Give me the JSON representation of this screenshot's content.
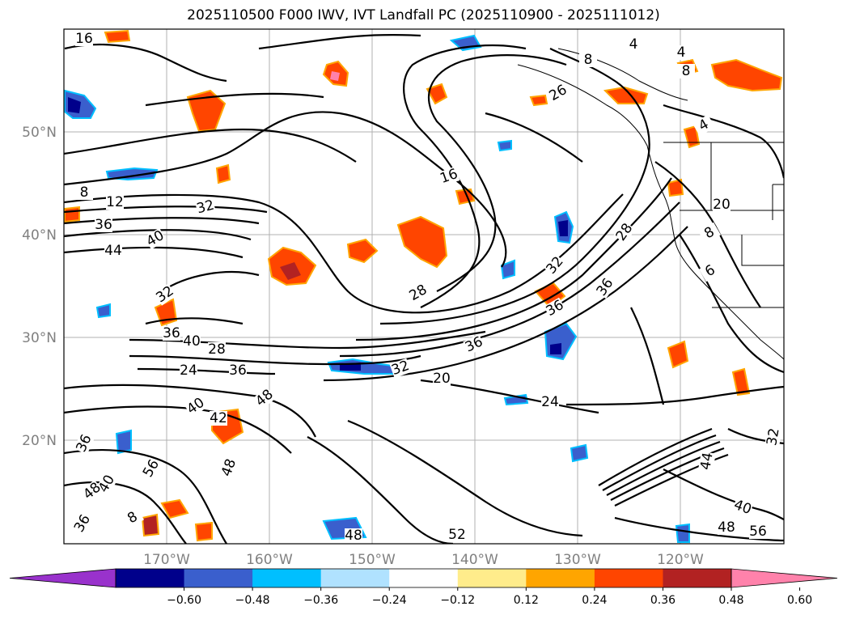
{
  "title": "2025110500 F000 IWV, IVT Landfall PC (2025110900 - 2025111012)",
  "lat_labels": [
    "50°N",
    "40°N",
    "30°N",
    "20°N"
  ],
  "lon_labels": [
    "170°W",
    "160°W",
    "150°W",
    "140°W",
    "130°W",
    "120°W"
  ],
  "colorbar": {
    "ticks": [
      "−0.60",
      "−0.48",
      "−0.36",
      "−0.24",
      "−0.12",
      "0.12",
      "0.24",
      "0.36",
      "0.48",
      "0.60"
    ],
    "colors": [
      "#9932cc",
      "#00008b",
      "#3a5fcd",
      "#00bfff",
      "#b0e2ff",
      "#ffffff",
      "#ffec8b",
      "#ffa500",
      "#ff4500",
      "#b22222",
      "#ff82ab"
    ]
  },
  "contour_labels": [
    "8",
    "12",
    "36",
    "44",
    "40",
    "32",
    "32",
    "36",
    "40",
    "28",
    "24",
    "36",
    "40",
    "42",
    "48",
    "36",
    "40",
    "48",
    "36",
    "56",
    "48",
    "8",
    "16",
    "16",
    "28",
    "32",
    "36",
    "20",
    "24",
    "36",
    "28",
    "32",
    "8",
    "26",
    "4",
    "4",
    "8",
    "4",
    "20",
    "8",
    "6",
    "36",
    "40",
    "48",
    "56",
    "32",
    "44",
    "48",
    "52"
  ]
}
